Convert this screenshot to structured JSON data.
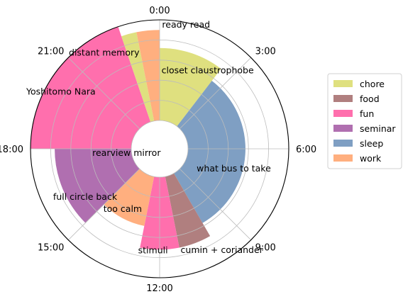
{
  "chart_data": {
    "type": "polar-bar",
    "title": "",
    "theta_ticks": [
      "0:00",
      "3:00",
      "6:00",
      "9:00",
      "12:00",
      "15:00",
      "18:00",
      "21:00"
    ],
    "rmax": 1.0,
    "grid": true,
    "legend_position": "right",
    "categories": [
      {
        "name": "chore",
        "color": "#dfe07f"
      },
      {
        "name": "food",
        "color": "#b07f7f"
      },
      {
        "name": "fun",
        "color": "#ff6fad"
      },
      {
        "name": "seminar",
        "color": "#b06fb0"
      },
      {
        "name": "sleep",
        "color": "#7f9fc3"
      },
      {
        "name": "work",
        "color": "#ffaf7f"
      }
    ],
    "series": [
      {
        "category": "chore",
        "start_hour": 0.0,
        "end_hour": 2.5,
        "value": 0.72
      },
      {
        "category": "sleep",
        "start_hour": 2.5,
        "end_hour": 10.0,
        "value": 0.57
      },
      {
        "category": "chore",
        "start_hour": 10.0,
        "end_hour": 11.0,
        "value": 0.27
      },
      {
        "category": "food",
        "start_hour": 10.0,
        "end_hour": 11.25,
        "value": 0.72
      },
      {
        "category": "fun",
        "start_hour": 11.25,
        "end_hour": 12.75,
        "value": 0.72
      },
      {
        "category": "work",
        "start_hour": 12.75,
        "end_hour": 15.0,
        "value": 0.5
      },
      {
        "category": "seminar",
        "start_hour": 15.0,
        "end_hour": 18.0,
        "value": 0.76
      },
      {
        "category": "fun",
        "start_hour": 18.0,
        "end_hour": 22.75,
        "value": 1.0
      },
      {
        "category": "chore",
        "start_hour": 22.75,
        "end_hour": 23.25,
        "value": 0.9
      },
      {
        "category": "work",
        "start_hour": 23.25,
        "end_hour": 24.0,
        "value": 0.9
      }
    ],
    "annotations": [
      "ready read",
      "closet claustrophobe",
      "distant memory",
      "Yoshitomo Nara",
      "rearview mirror",
      "what bus to take",
      "full circle back",
      "too calm",
      "stimuli",
      "cumin + coriander"
    ]
  }
}
